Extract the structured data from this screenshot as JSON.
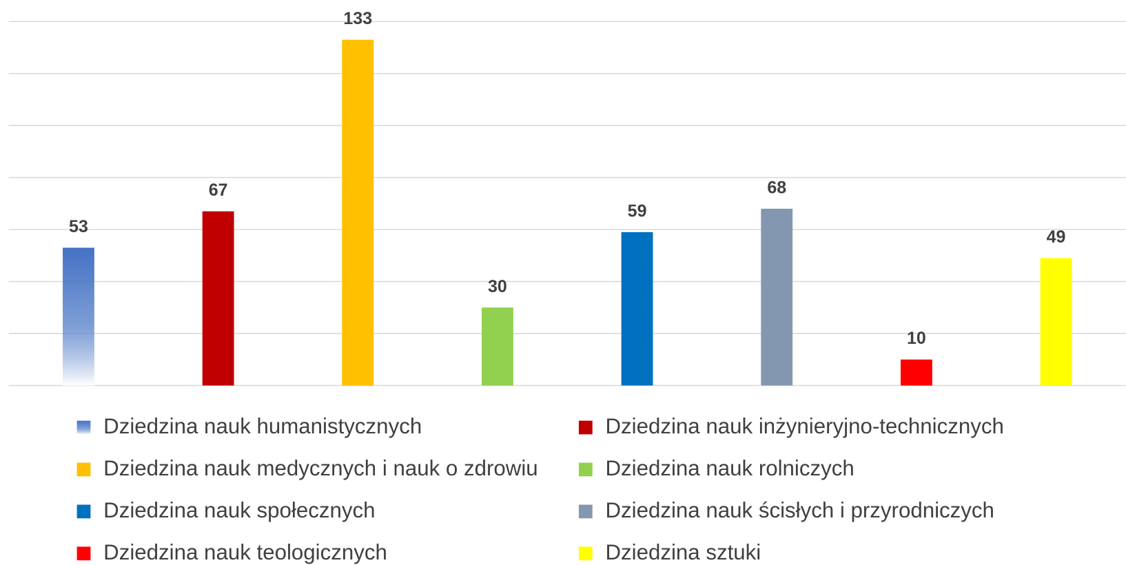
{
  "chart_data": {
    "type": "bar",
    "categories": [
      "Dziedzina nauk humanistycznych",
      "Dziedzina nauk inżynieryjno-technicznych",
      "Dziedzina nauk medycznych i nauk o zdrowiu",
      "Dziedzina nauk rolniczych",
      "Dziedzina nauk społecznych",
      "Dziedzina nauk ścisłych i przyrodniczych",
      "Dziedzina nauk teologicznych",
      "Dziedzina sztuki"
    ],
    "values": [
      53,
      67,
      133,
      30,
      59,
      68,
      10,
      49
    ],
    "colors": [
      "#4472c4",
      "#c00000",
      "#ffc000",
      "#92d050",
      "#0070c0",
      "#8497b0",
      "#ff0000",
      "#ffff00"
    ],
    "ylim": [
      0,
      140
    ],
    "yticks": [
      0,
      20,
      40,
      60,
      80,
      100,
      120,
      140
    ],
    "grid": true,
    "legend": "bottom"
  }
}
